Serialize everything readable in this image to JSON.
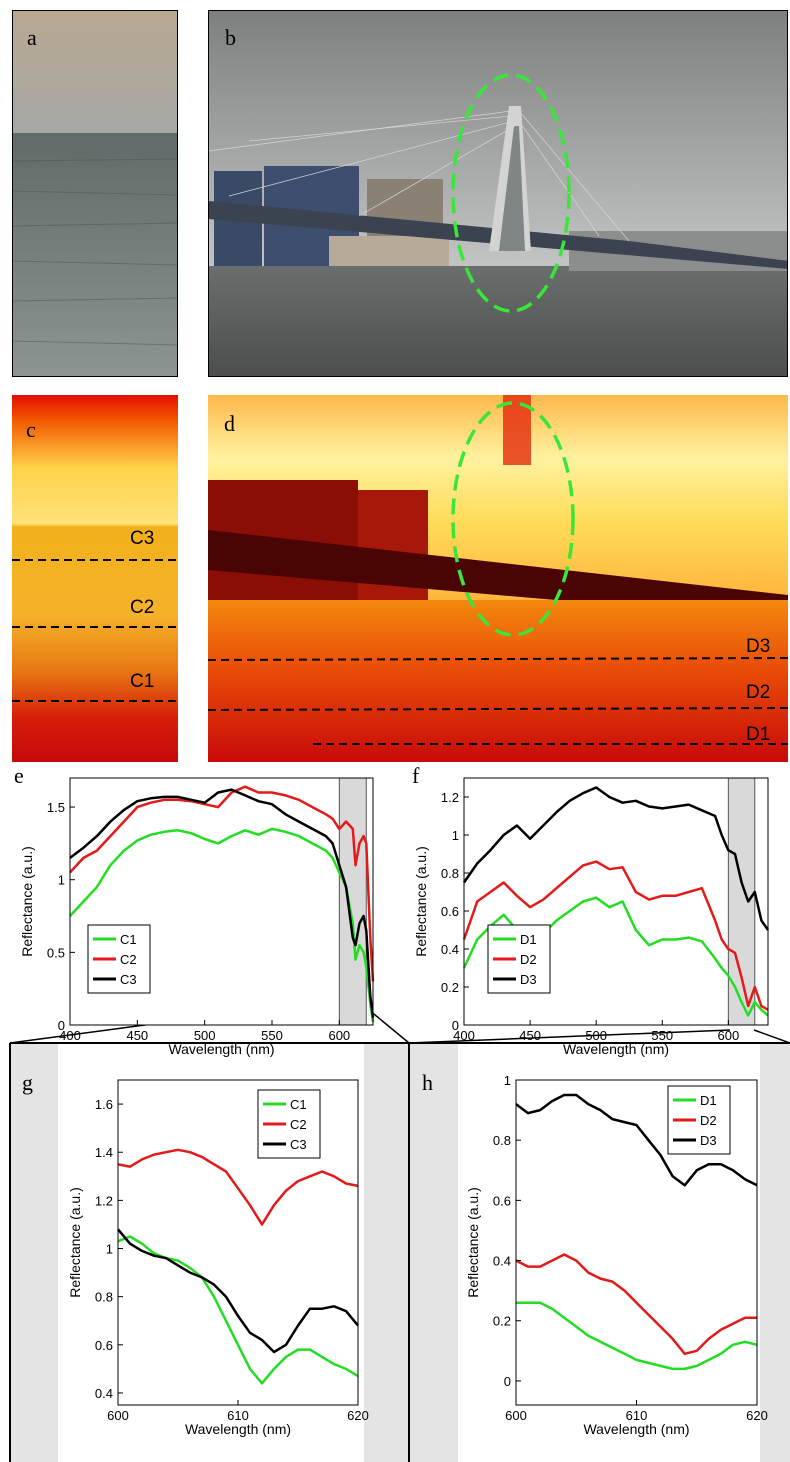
{
  "panel_labels": {
    "a": "a",
    "b": "b",
    "c": "c",
    "d": "d",
    "e": "e",
    "f": "f",
    "g": "g",
    "h": "h"
  },
  "line_labels_c": [
    "C3",
    "C2",
    "C1"
  ],
  "line_labels_d": [
    "D3",
    "D2",
    "D1"
  ],
  "colors": {
    "c1": "#22dd22",
    "c2": "#e41a1a",
    "c3": "#000000",
    "highlight": "#39e639",
    "shade": "#d9d9d9"
  },
  "chart_data": [
    {
      "id": "e",
      "type": "line",
      "xlabel": "Wavelength (nm)",
      "ylabel": "Reflectance (a.u.)",
      "xlim": [
        400,
        625
      ],
      "ylim": [
        0,
        1.7
      ],
      "xticks": [
        400,
        450,
        500,
        550,
        600
      ],
      "yticks": [
        0,
        0.5,
        1,
        1.5
      ],
      "shaded_region": [
        600,
        620
      ],
      "legend": "bottom-left",
      "x": [
        400,
        410,
        420,
        430,
        440,
        450,
        460,
        470,
        480,
        490,
        500,
        510,
        520,
        530,
        540,
        550,
        560,
        570,
        580,
        590,
        595,
        600,
        605,
        610,
        612,
        615,
        618,
        620,
        623,
        625
      ],
      "series": [
        {
          "name": "C1",
          "color": "#22dd22",
          "values": [
            0.75,
            0.85,
            0.95,
            1.1,
            1.2,
            1.27,
            1.31,
            1.33,
            1.34,
            1.32,
            1.28,
            1.25,
            1.3,
            1.34,
            1.31,
            1.35,
            1.33,
            1.3,
            1.25,
            1.2,
            1.15,
            1.05,
            0.95,
            0.7,
            0.45,
            0.55,
            0.5,
            0.4,
            0.15,
            0.02
          ]
        },
        {
          "name": "C2",
          "color": "#e41a1a",
          "values": [
            1.05,
            1.15,
            1.2,
            1.3,
            1.4,
            1.5,
            1.53,
            1.55,
            1.55,
            1.54,
            1.52,
            1.5,
            1.6,
            1.64,
            1.6,
            1.6,
            1.58,
            1.55,
            1.5,
            1.45,
            1.42,
            1.35,
            1.4,
            1.35,
            1.1,
            1.25,
            1.3,
            1.25,
            0.6,
            0.3
          ]
        },
        {
          "name": "C3",
          "color": "#000000",
          "values": [
            1.15,
            1.22,
            1.3,
            1.4,
            1.48,
            1.54,
            1.56,
            1.57,
            1.57,
            1.55,
            1.53,
            1.6,
            1.62,
            1.58,
            1.54,
            1.52,
            1.45,
            1.4,
            1.35,
            1.3,
            1.25,
            1.1,
            0.95,
            0.6,
            0.55,
            0.7,
            0.75,
            0.65,
            0.2,
            0.05
          ]
        }
      ]
    },
    {
      "id": "f",
      "type": "line",
      "xlabel": "Wavelength (nm)",
      "ylabel": "Reflectance (a.u.)",
      "xlim": [
        400,
        630
      ],
      "ylim": [
        0,
        1.3
      ],
      "xticks": [
        400,
        450,
        500,
        550,
        600
      ],
      "yticks": [
        0,
        0.2,
        0.4,
        0.6,
        0.8,
        1,
        1.2
      ],
      "shaded_region": [
        600,
        620
      ],
      "legend": "bottom-left",
      "x": [
        400,
        410,
        420,
        430,
        440,
        450,
        460,
        470,
        480,
        490,
        500,
        510,
        520,
        530,
        540,
        550,
        560,
        570,
        580,
        590,
        595,
        600,
        605,
        610,
        615,
        620,
        625,
        630
      ],
      "series": [
        {
          "name": "D1",
          "color": "#22dd22",
          "values": [
            0.3,
            0.45,
            0.52,
            0.58,
            0.5,
            0.45,
            0.48,
            0.55,
            0.6,
            0.65,
            0.67,
            0.62,
            0.65,
            0.5,
            0.42,
            0.45,
            0.45,
            0.46,
            0.44,
            0.35,
            0.3,
            0.26,
            0.2,
            0.12,
            0.05,
            0.12,
            0.08,
            0.05
          ]
        },
        {
          "name": "D2",
          "color": "#e41a1a",
          "values": [
            0.45,
            0.65,
            0.7,
            0.75,
            0.68,
            0.62,
            0.66,
            0.72,
            0.78,
            0.84,
            0.86,
            0.82,
            0.83,
            0.7,
            0.66,
            0.68,
            0.68,
            0.7,
            0.72,
            0.55,
            0.45,
            0.4,
            0.38,
            0.25,
            0.1,
            0.2,
            0.1,
            0.08
          ]
        },
        {
          "name": "D3",
          "color": "#000000",
          "values": [
            0.75,
            0.85,
            0.92,
            1.0,
            1.05,
            0.98,
            1.05,
            1.12,
            1.18,
            1.22,
            1.25,
            1.2,
            1.17,
            1.18,
            1.15,
            1.14,
            1.15,
            1.16,
            1.13,
            1.1,
            1.0,
            0.92,
            0.9,
            0.75,
            0.65,
            0.7,
            0.55,
            0.5
          ]
        }
      ]
    },
    {
      "id": "g",
      "type": "line",
      "xlabel": "Wavelength (nm)",
      "ylabel": "Reflectance (a.u.)",
      "xlim": [
        600,
        620
      ],
      "ylim": [
        0.35,
        1.7
      ],
      "xticks": [
        600,
        610,
        620
      ],
      "yticks": [
        0.4,
        0.6,
        0.8,
        1,
        1.2,
        1.4,
        1.6
      ],
      "legend": "top-right",
      "x": [
        600,
        601,
        602,
        603,
        604,
        605,
        606,
        607,
        608,
        609,
        610,
        611,
        612,
        613,
        614,
        615,
        616,
        617,
        618,
        619,
        620
      ],
      "series": [
        {
          "name": "C1",
          "color": "#22dd22",
          "values": [
            1.03,
            1.05,
            1.02,
            0.98,
            0.96,
            0.95,
            0.92,
            0.88,
            0.8,
            0.7,
            0.6,
            0.5,
            0.44,
            0.5,
            0.55,
            0.58,
            0.58,
            0.55,
            0.52,
            0.5,
            0.47
          ]
        },
        {
          "name": "C2",
          "color": "#e41a1a",
          "values": [
            1.35,
            1.34,
            1.37,
            1.39,
            1.4,
            1.41,
            1.4,
            1.38,
            1.35,
            1.32,
            1.25,
            1.18,
            1.1,
            1.18,
            1.24,
            1.28,
            1.3,
            1.32,
            1.3,
            1.27,
            1.26
          ]
        },
        {
          "name": "C3",
          "color": "#000000",
          "values": [
            1.08,
            1.02,
            0.99,
            0.97,
            0.96,
            0.93,
            0.9,
            0.88,
            0.85,
            0.8,
            0.72,
            0.65,
            0.62,
            0.57,
            0.6,
            0.68,
            0.75,
            0.75,
            0.76,
            0.74,
            0.68
          ]
        }
      ]
    },
    {
      "id": "h",
      "type": "line",
      "xlabel": "Wavelength (nm)",
      "ylabel": "Reflectance (a.u.)",
      "xlim": [
        600,
        620
      ],
      "ylim": [
        -0.08,
        1.0
      ],
      "xticks": [
        600,
        610,
        620
      ],
      "yticks": [
        0,
        0.2,
        0.4,
        0.6,
        0.8,
        1
      ],
      "legend": "top-right",
      "x": [
        600,
        601,
        602,
        603,
        604,
        605,
        606,
        607,
        608,
        609,
        610,
        611,
        612,
        613,
        614,
        615,
        616,
        617,
        618,
        619,
        620
      ],
      "series": [
        {
          "name": "D1",
          "color": "#22dd22",
          "values": [
            0.26,
            0.26,
            0.26,
            0.24,
            0.21,
            0.18,
            0.15,
            0.13,
            0.11,
            0.09,
            0.07,
            0.06,
            0.05,
            0.04,
            0.04,
            0.05,
            0.07,
            0.09,
            0.12,
            0.13,
            0.12
          ]
        },
        {
          "name": "D2",
          "color": "#e41a1a",
          "values": [
            0.4,
            0.38,
            0.38,
            0.4,
            0.42,
            0.4,
            0.36,
            0.34,
            0.33,
            0.3,
            0.26,
            0.22,
            0.18,
            0.14,
            0.09,
            0.1,
            0.14,
            0.17,
            0.19,
            0.21,
            0.21
          ]
        },
        {
          "name": "D3",
          "color": "#000000",
          "values": [
            0.92,
            0.89,
            0.9,
            0.93,
            0.95,
            0.95,
            0.92,
            0.9,
            0.87,
            0.86,
            0.85,
            0.8,
            0.75,
            0.68,
            0.65,
            0.7,
            0.72,
            0.72,
            0.7,
            0.67,
            0.65
          ]
        }
      ]
    }
  ]
}
